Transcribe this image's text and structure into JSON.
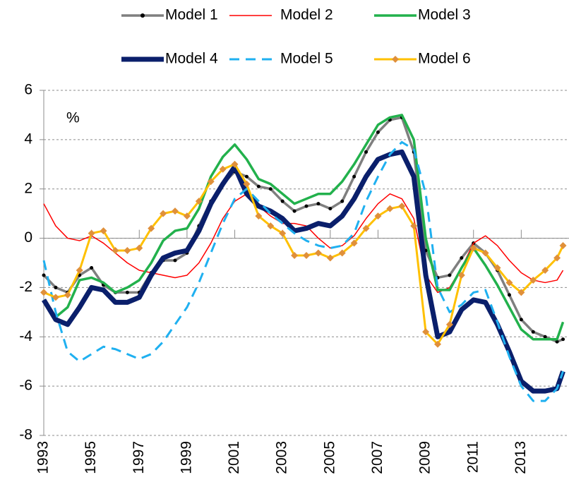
{
  "chart_data": {
    "type": "line",
    "annotation": "%",
    "x": [
      1993,
      1993.5,
      1994,
      1994.5,
      1995,
      1995.5,
      1996,
      1996.5,
      1997,
      1997.5,
      1998,
      1998.5,
      1999,
      1999.5,
      2000,
      2000.5,
      2001,
      2001.5,
      2002,
      2002.5,
      2003,
      2003.5,
      2004,
      2004.5,
      2005,
      2005.5,
      2006,
      2006.5,
      2007,
      2007.5,
      2008,
      2008.5,
      2009,
      2009.5,
      2010,
      2010.5,
      2011,
      2011.5,
      2012,
      2012.5,
      2013,
      2013.5,
      2014,
      2014.5,
      2014.75
    ],
    "xlim": [
      1993,
      2015
    ],
    "xticks": [
      1993,
      1995,
      1997,
      1999,
      2001,
      2003,
      2005,
      2007,
      2009,
      2011,
      2013
    ],
    "ylim": [
      -8,
      6
    ],
    "yticks": [
      -8,
      -6,
      -4,
      -2,
      0,
      2,
      4,
      6
    ],
    "grid": true,
    "series": [
      {
        "name": "Model 1",
        "color": "#7f7f7f",
        "marker": "circle",
        "marker_color": "#000000",
        "width": 3.5,
        "dashed": false,
        "values": [
          -1.5,
          -2.0,
          -2.2,
          -1.5,
          -1.2,
          -1.9,
          -2.2,
          -2.2,
          -2.2,
          -1.4,
          -0.9,
          -0.9,
          -0.6,
          0.5,
          1.5,
          2.2,
          2.7,
          2.5,
          2.1,
          2.0,
          1.5,
          1.1,
          1.3,
          1.4,
          1.2,
          1.5,
          2.5,
          3.5,
          4.3,
          4.8,
          4.9,
          3.5,
          -0.5,
          -1.6,
          -1.5,
          -0.8,
          -0.2,
          -0.6,
          -1.3,
          -2.3,
          -3.3,
          -3.8,
          -4.0,
          -4.2,
          -4.1
        ]
      },
      {
        "name": "Model 2",
        "color": "#ff0000",
        "width": 1.5,
        "dashed": false,
        "values": [
          1.4,
          0.5,
          0.0,
          -0.1,
          0.1,
          -0.2,
          -0.6,
          -1.0,
          -1.3,
          -1.4,
          -1.5,
          -1.6,
          -1.5,
          -1.0,
          -0.2,
          0.8,
          1.5,
          1.8,
          1.3,
          0.9,
          0.6,
          0.6,
          0.5,
          0.0,
          -0.4,
          -0.3,
          0.1,
          0.8,
          1.4,
          1.8,
          1.6,
          0.8,
          -1.5,
          -2.2,
          -2.0,
          -1.2,
          -0.2,
          0.1,
          -0.3,
          -0.9,
          -1.4,
          -1.7,
          -1.8,
          -1.7,
          -1.3
        ]
      },
      {
        "name": "Model 3",
        "color": "#22b14c",
        "width": 3.5,
        "dashed": false,
        "values": [
          -2.5,
          -3.2,
          -2.8,
          -1.7,
          -1.6,
          -1.8,
          -2.2,
          -2.0,
          -1.7,
          -1.0,
          -0.1,
          0.3,
          0.4,
          1.2,
          2.5,
          3.3,
          3.8,
          3.2,
          2.4,
          2.2,
          1.8,
          1.4,
          1.6,
          1.8,
          1.8,
          2.3,
          3.0,
          3.8,
          4.6,
          4.9,
          5.0,
          4.0,
          0.0,
          -2.1,
          -2.1,
          -1.2,
          -0.4,
          -1.1,
          -1.9,
          -2.8,
          -3.7,
          -4.1,
          -4.1,
          -4.1,
          -3.4
        ]
      },
      {
        "name": "Model 4",
        "color": "#0a1f6b",
        "width": 7,
        "dashed": false,
        "values": [
          -2.5,
          -3.3,
          -3.5,
          -2.8,
          -2.0,
          -2.1,
          -2.6,
          -2.6,
          -2.4,
          -1.5,
          -0.8,
          -0.6,
          -0.5,
          0.3,
          1.4,
          2.2,
          2.9,
          1.8,
          1.3,
          1.1,
          0.8,
          0.3,
          0.4,
          0.6,
          0.5,
          0.9,
          1.6,
          2.5,
          3.2,
          3.4,
          3.5,
          2.5,
          -1.5,
          -4.0,
          -3.8,
          -2.9,
          -2.5,
          -2.6,
          -3.5,
          -4.6,
          -5.8,
          -6.2,
          -6.2,
          -6.1,
          -5.4
        ]
      },
      {
        "name": "Model 5",
        "color": "#1fb0f0",
        "width": 3,
        "dashed": true,
        "values": [
          -0.9,
          -3.0,
          -4.6,
          -5.0,
          -4.7,
          -4.4,
          -4.5,
          -4.7,
          -4.9,
          -4.7,
          -4.2,
          -3.5,
          -2.8,
          -1.8,
          -0.6,
          0.6,
          1.6,
          2.0,
          1.5,
          1.0,
          0.6,
          0.2,
          -0.1,
          -0.3,
          -0.4,
          -0.3,
          0.2,
          1.5,
          2.5,
          3.4,
          3.9,
          3.6,
          1.8,
          -2.0,
          -3.0,
          -2.7,
          -2.2,
          -2.1,
          -3.4,
          -4.8,
          -6.0,
          -6.6,
          -6.6,
          -6.1,
          -5.4
        ]
      },
      {
        "name": "Model 6",
        "color": "#ffc000",
        "marker": "diamond",
        "marker_color": "#e0903a",
        "width": 3,
        "dashed": false,
        "values": [
          -2.2,
          -2.4,
          -2.3,
          -1.3,
          0.2,
          0.3,
          -0.5,
          -0.5,
          -0.4,
          0.4,
          1.0,
          1.1,
          0.9,
          1.5,
          2.3,
          2.8,
          3.0,
          2.2,
          0.9,
          0.5,
          0.2,
          -0.7,
          -0.7,
          -0.6,
          -0.8,
          -0.6,
          -0.2,
          0.4,
          0.9,
          1.2,
          1.3,
          0.5,
          -3.8,
          -4.3,
          -3.5,
          -1.5,
          -0.4,
          -0.6,
          -1.2,
          -1.8,
          -2.2,
          -1.7,
          -1.3,
          -0.8,
          -0.3
        ]
      }
    ]
  }
}
